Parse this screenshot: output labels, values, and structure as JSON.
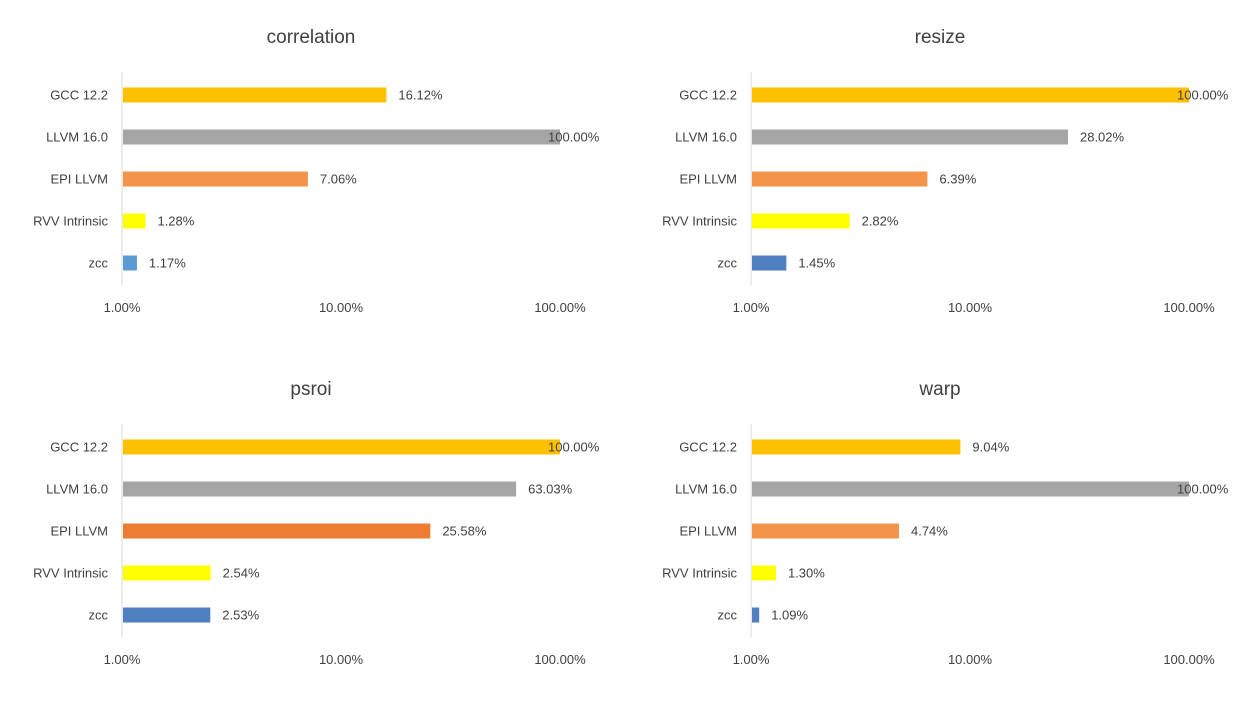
{
  "chart_data": [
    {
      "type": "bar",
      "orientation": "horizontal",
      "title": "correlation",
      "xscale": "log",
      "xlim": [
        1,
        100
      ],
      "xticks": [
        "1.00%",
        "10.00%",
        "100.00%"
      ],
      "categories": [
        "GCC 12.2",
        "LLVM 16.0",
        "EPI LLVM",
        "RVV Intrinsic",
        "zcc"
      ],
      "values": [
        16.12,
        100.0,
        7.06,
        1.28,
        1.17
      ],
      "labels": [
        "16.12%",
        "100.00%",
        "7.06%",
        "1.28%",
        "1.17%"
      ],
      "colors": [
        "#FFC000",
        "#A5A5A5",
        "#F4934A",
        "#FFFF00",
        "#5B9BD5"
      ],
      "grid": false,
      "legend": false
    },
    {
      "type": "bar",
      "orientation": "horizontal",
      "title": "resize",
      "xscale": "log",
      "xlim": [
        1,
        100
      ],
      "xticks": [
        "1.00%",
        "10.00%",
        "100.00%"
      ],
      "categories": [
        "GCC 12.2",
        "LLVM 16.0",
        "EPI LLVM",
        "RVV Intrinsic",
        "zcc"
      ],
      "values": [
        100.0,
        28.02,
        6.39,
        2.82,
        1.45
      ],
      "labels": [
        "100.00%",
        "28.02%",
        "6.39%",
        "2.82%",
        "1.45%"
      ],
      "colors": [
        "#FFC000",
        "#A5A5A5",
        "#F4934A",
        "#FFFF00",
        "#4F7EC1"
      ],
      "grid": false,
      "legend": false
    },
    {
      "type": "bar",
      "orientation": "horizontal",
      "title": "psroi",
      "xscale": "log",
      "xlim": [
        1,
        100
      ],
      "xticks": [
        "1.00%",
        "10.00%",
        "100.00%"
      ],
      "categories": [
        "GCC 12.2",
        "LLVM 16.0",
        "EPI LLVM",
        "RVV Intrinsic",
        "zcc"
      ],
      "values": [
        100.0,
        63.03,
        25.58,
        2.54,
        2.53
      ],
      "labels": [
        "100.00%",
        "63.03%",
        "25.58%",
        "2.54%",
        "2.53%"
      ],
      "colors": [
        "#FFC000",
        "#A5A5A5",
        "#ED7D31",
        "#FFFF00",
        "#4F7EC1"
      ],
      "grid": false,
      "legend": false
    },
    {
      "type": "bar",
      "orientation": "horizontal",
      "title": "warp",
      "xscale": "log",
      "xlim": [
        1,
        100
      ],
      "xticks": [
        "1.00%",
        "10.00%",
        "100.00%"
      ],
      "categories": [
        "GCC 12.2",
        "LLVM 16.0",
        "EPI LLVM",
        "RVV Intrinsic",
        "zcc"
      ],
      "values": [
        9.04,
        100.0,
        4.74,
        1.3,
        1.09
      ],
      "labels": [
        "9.04%",
        "100.00%",
        "4.74%",
        "1.30%",
        "1.09%"
      ],
      "colors": [
        "#FFC000",
        "#A5A5A5",
        "#F4934A",
        "#FFFF00",
        "#4F7EC1"
      ],
      "grid": false,
      "legend": false
    }
  ]
}
